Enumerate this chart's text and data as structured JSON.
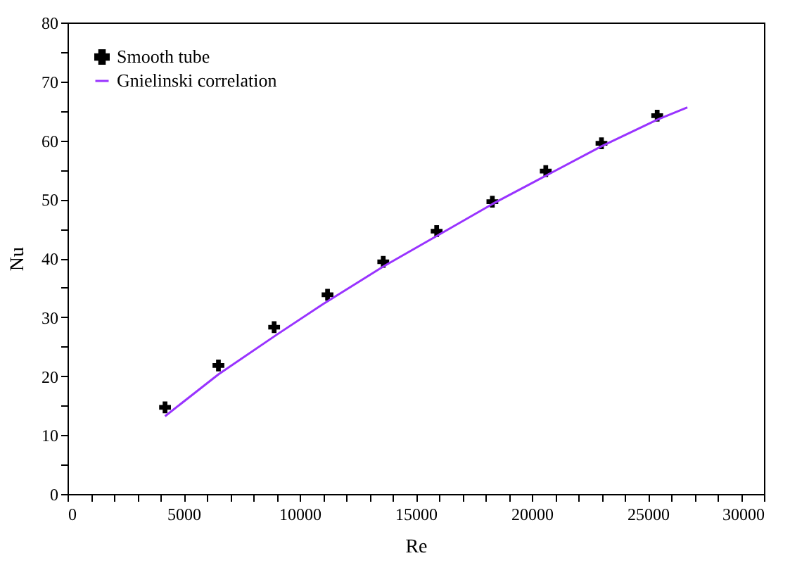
{
  "chart_data": {
    "type": "scatter",
    "xlabel": "Re",
    "ylabel": "Nu",
    "xlim": [
      0,
      30000
    ],
    "ylim": [
      0,
      80
    ],
    "xticks": [
      0,
      {
        "value": 1000,
        "label": null
      },
      {
        "value": 2000,
        "label": null
      },
      {
        "value": 3000,
        "label": null
      },
      {
        "value": 4000,
        "label": null
      },
      5000,
      {
        "value": 6000,
        "label": null
      },
      {
        "value": 7000,
        "label": null
      },
      {
        "value": 8000,
        "label": null
      },
      {
        "value": 9000,
        "label": null
      },
      10000,
      {
        "value": 11000,
        "label": null
      },
      {
        "value": 12000,
        "label": null
      },
      {
        "value": 13000,
        "label": null
      },
      {
        "value": 14000,
        "label": null
      },
      15000,
      {
        "value": 16000,
        "label": null
      },
      {
        "value": 17000,
        "label": null
      },
      {
        "value": 18000,
        "label": null
      },
      {
        "value": 19000,
        "label": null
      },
      20000,
      {
        "value": 21000,
        "label": null
      },
      {
        "value": 22000,
        "label": null
      },
      {
        "value": 23000,
        "label": null
      },
      {
        "value": 24000,
        "label": null
      },
      25000,
      {
        "value": 26000,
        "label": null
      },
      {
        "value": 27000,
        "label": null
      },
      {
        "value": 28000,
        "label": null
      },
      {
        "value": 29000,
        "label": null
      },
      30000
    ],
    "yticks": [
      0,
      {
        "value": 5,
        "label": null
      },
      10,
      {
        "value": 15,
        "label": null
      },
      20,
      {
        "value": 25,
        "label": null
      },
      30,
      {
        "value": 35,
        "label": null
      },
      40,
      {
        "value": 45,
        "label": null
      },
      50,
      {
        "value": 55,
        "label": null
      },
      60,
      {
        "value": 65,
        "label": null
      },
      70,
      {
        "value": 75,
        "label": null
      },
      80
    ],
    "grid": false,
    "legend": "top left",
    "series": [
      {
        "name": "Smooth tube",
        "type": "scatter",
        "marker": "cross",
        "color": "#000000",
        "x": [
          4200,
          6500,
          8900,
          11200,
          13600,
          15900,
          18300,
          20600,
          23000,
          25400
        ],
        "values": [
          14.7,
          21.8,
          28.3,
          33.8,
          39.4,
          44.6,
          49.6,
          54.8,
          59.5,
          64.2
        ]
      },
      {
        "name": "Gnielinski correlation",
        "type": "line",
        "line_style": "solid",
        "color": "#9933ff",
        "x": [
          4200,
          6500,
          9000,
          11000,
          13600,
          16000,
          18300,
          20600,
          23000,
          25400,
          26700
        ],
        "values": [
          13.2,
          20.3,
          27,
          32.2,
          38.6,
          44,
          49.2,
          54,
          59,
          63.5,
          65.6
        ]
      }
    ]
  }
}
